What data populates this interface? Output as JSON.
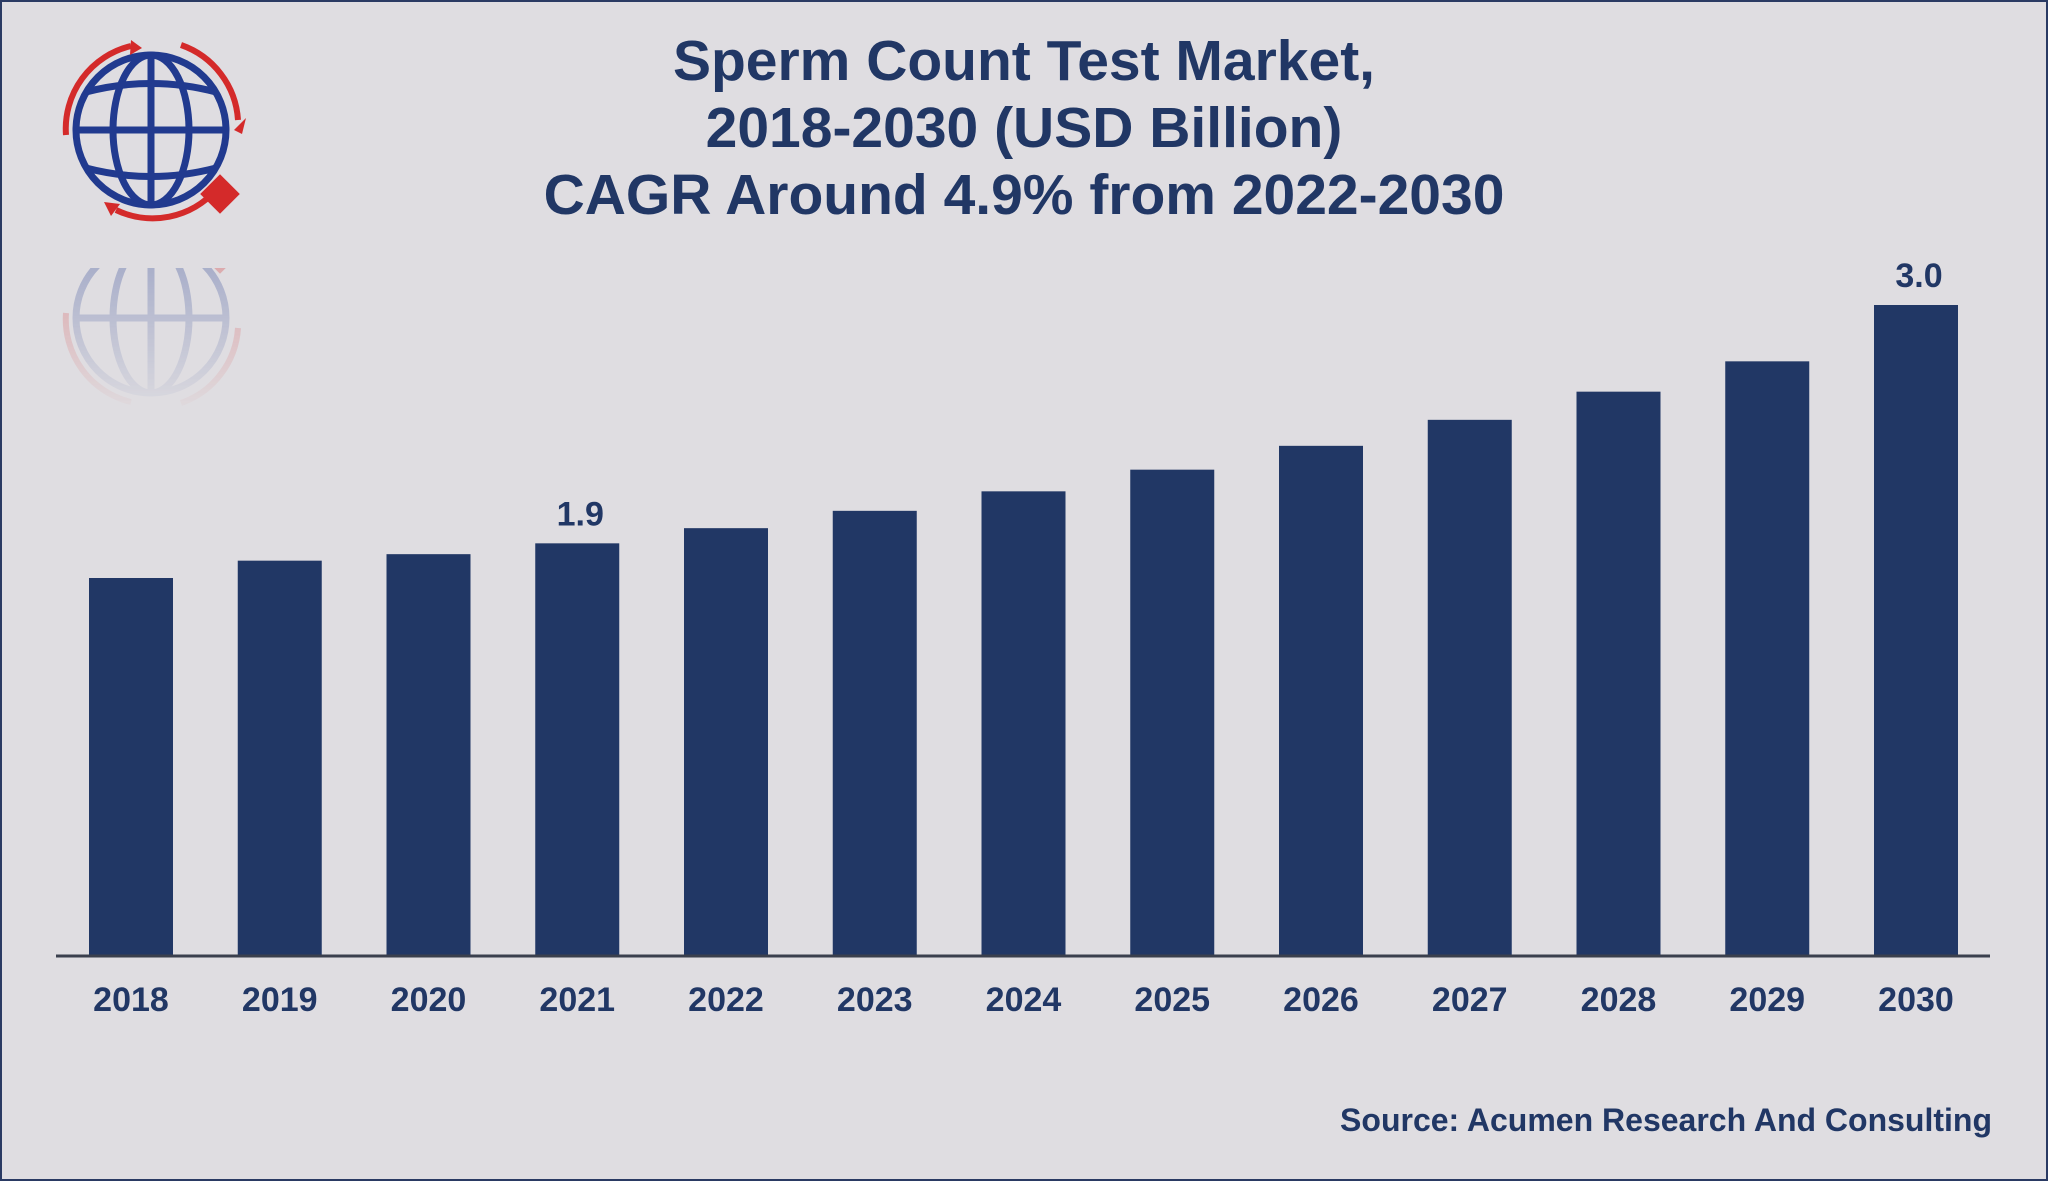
{
  "chart_data": {
    "type": "bar",
    "title": "Sperm Count Test Market, 2018-2030 (USD Billion) CAGR Around 4.9% from 2022-2030",
    "title_lines": [
      "Sperm Count Test Market,",
      "2018-2030 (USD Billion)",
      "CAGR Around 4.9% from 2022-2030"
    ],
    "categories": [
      "2018",
      "2019",
      "2020",
      "2021",
      "2022",
      "2023",
      "2024",
      "2025",
      "2026",
      "2027",
      "2028",
      "2029",
      "2030"
    ],
    "values": [
      1.74,
      1.82,
      1.85,
      1.9,
      1.97,
      2.05,
      2.14,
      2.24,
      2.35,
      2.47,
      2.6,
      2.74,
      3.0
    ],
    "data_labels": [
      {
        "category": "2021",
        "text": "1.9"
      },
      {
        "category": "2030",
        "text": "3.0"
      }
    ],
    "xlabel": "",
    "ylabel": "",
    "ylim": [
      0,
      3.0
    ],
    "grid": false,
    "legend": "none",
    "bar_color": "#213765"
  },
  "source": "Source: Acumen Research And Consulting",
  "logo": {
    "icon": "globe-logo-icon",
    "colors": [
      "#213a8f",
      "#d42a2a"
    ]
  }
}
